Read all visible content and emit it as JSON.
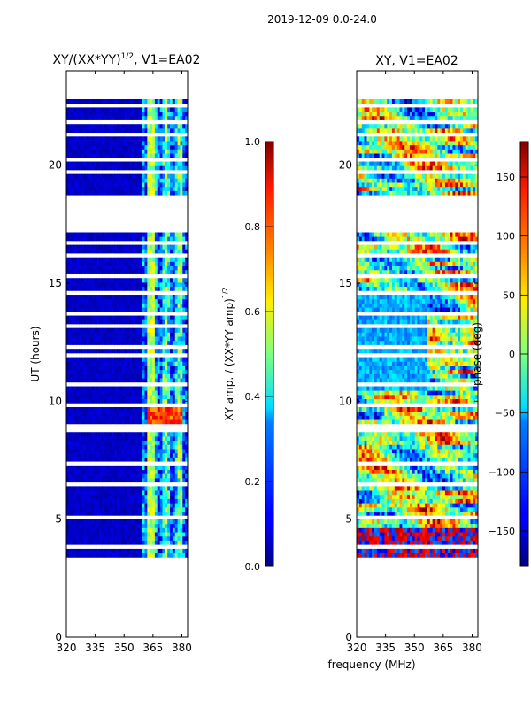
{
  "suptitle": "2019-12-09 0.0-24.0",
  "shared_xlabel": "frequency (MHz)",
  "colormap": "jet",
  "chart_data": [
    {
      "type": "heatmap",
      "title": "XY/(XX*YY)",
      "title_sup": "1/2",
      "title_suffix": ", V1=EA02",
      "xlabel": "",
      "ylabel": "UT (hours)",
      "xlim": [
        320,
        383
      ],
      "ylim": [
        0,
        24
      ],
      "xticks": [
        "320",
        "335",
        "350",
        "365",
        "380"
      ],
      "yticks": [
        "0",
        "5",
        "10",
        "15",
        "20"
      ],
      "data_time_range": [
        3.4,
        22.8
      ],
      "data_freq_range": [
        320,
        383
      ],
      "colorbar": {
        "label": "XY amp. / (XX*YY amp)",
        "label_sup": "1/2",
        "range": [
          0.0,
          1.0
        ],
        "ticks": [
          "0.0",
          "0.2",
          "0.4",
          "0.6",
          "0.8",
          "1.0"
        ]
      }
    },
    {
      "type": "heatmap",
      "title": "XY, V1=EA02",
      "xlabel": "frequency (MHz)",
      "ylabel": "",
      "xlim": [
        320,
        383
      ],
      "ylim": [
        0,
        24
      ],
      "xticks": [
        "320",
        "335",
        "350",
        "365",
        "380"
      ],
      "yticks": [
        "0",
        "5",
        "10",
        "15",
        "20"
      ],
      "data_time_range": [
        3.4,
        22.8
      ],
      "data_freq_range": [
        320,
        383
      ],
      "colorbar": {
        "label": "phase (deg)",
        "range": [
          -180,
          180
        ],
        "ticks": [
          "−150",
          "−100",
          "−50",
          "0",
          "50",
          "100",
          "150"
        ]
      }
    }
  ]
}
